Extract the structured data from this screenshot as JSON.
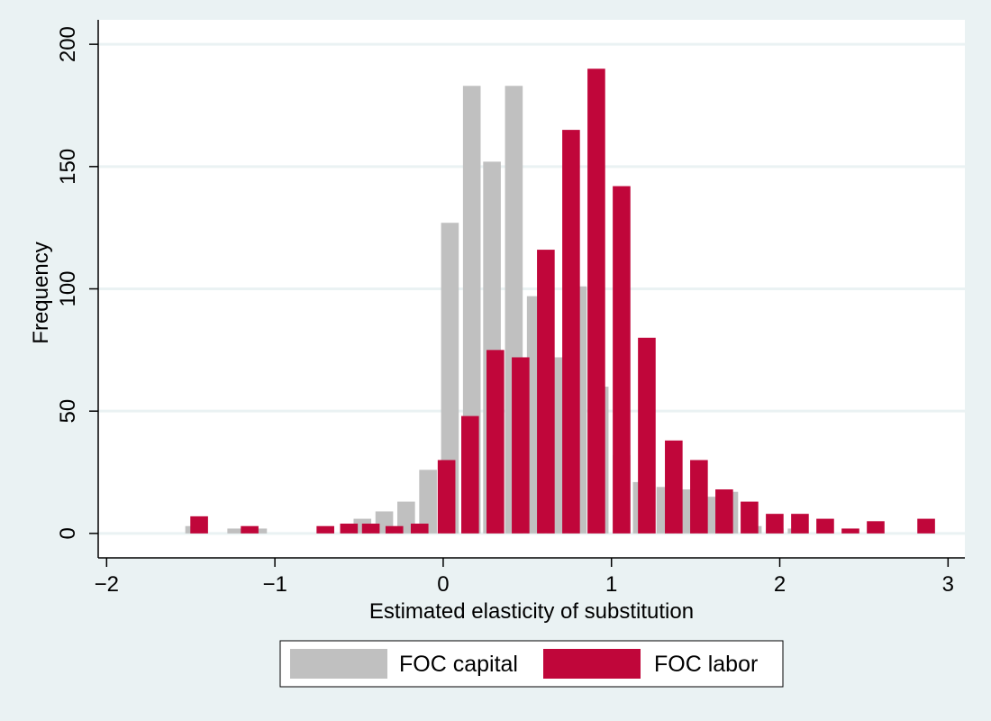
{
  "chart_data": {
    "type": "bar",
    "title": "",
    "xlabel": "Estimated elasticity of substitution",
    "ylabel": "Frequency",
    "xlim": [
      -2.05,
      3.1
    ],
    "ylim": [
      -10,
      210
    ],
    "xticks": [
      -2,
      -1,
      0,
      1,
      2,
      3
    ],
    "xtick_labels": [
      "−2",
      "−1",
      "0",
      "1",
      "2",
      "3"
    ],
    "yticks": [
      0,
      50,
      100,
      150,
      200
    ],
    "ytick_labels": [
      "0",
      "50",
      "100",
      "150",
      "200"
    ],
    "grid": true,
    "legend_position": "bottom",
    "bar_width": 0.105,
    "series": [
      {
        "name": "FOC capital",
        "color": "#c0c0c0",
        "x": [
          -1.48,
          -1.23,
          -1.1,
          -0.48,
          -0.35,
          -0.22,
          -0.09,
          0.04,
          0.17,
          0.29,
          0.42,
          0.55,
          0.67,
          0.8,
          0.93,
          1.06,
          1.18,
          1.32,
          1.44,
          1.57,
          1.7,
          1.84,
          1.97,
          2.1
        ],
        "values": [
          3,
          2,
          2,
          6,
          9,
          13,
          26,
          127,
          183,
          152,
          183,
          97,
          72,
          101,
          60,
          32,
          21,
          19,
          18,
          15,
          17,
          3,
          2,
          2
        ]
      },
      {
        "name": "FOC labor",
        "color": "#c0063a",
        "x": [
          -1.45,
          -1.15,
          -0.7,
          -0.56,
          -0.43,
          -0.29,
          -0.14,
          0.02,
          0.16,
          0.31,
          0.46,
          0.61,
          0.76,
          0.91,
          1.06,
          1.21,
          1.37,
          1.52,
          1.67,
          1.82,
          1.97,
          2.12,
          2.27,
          2.42,
          2.57,
          2.87
        ],
        "values": [
          7,
          3,
          3,
          4,
          4,
          3,
          4,
          30,
          48,
          75,
          72,
          116,
          165,
          190,
          142,
          80,
          38,
          30,
          18,
          13,
          8,
          8,
          6,
          2,
          5,
          6
        ]
      }
    ]
  }
}
